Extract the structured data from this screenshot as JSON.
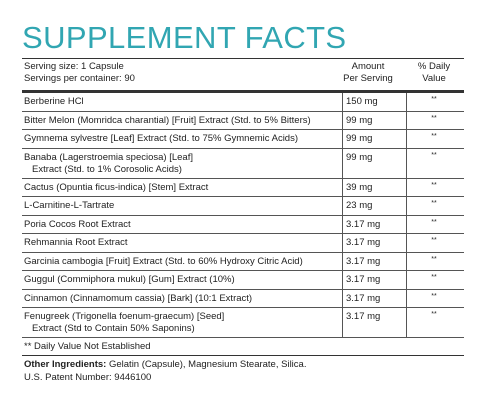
{
  "title": "SUPPLEMENT FACTS",
  "serving_size": "Serving size: 1 Capsule",
  "servings_per_container": "Servings per container: 90",
  "amount_header": [
    "Amount",
    "Per Serving"
  ],
  "daily_value_header": [
    "% Daily",
    "Value"
  ],
  "ingredients": [
    {
      "name": [
        "Berberine HCl"
      ],
      "amount": "150 mg",
      "dv": "**"
    },
    {
      "name": [
        "Bitter Melon (Momridca charantial) [Fruit] Extract (Std. to 5% Bitters)"
      ],
      "amount": "99 mg",
      "dv": "**"
    },
    {
      "name": [
        "Gymnema sylvestre [Leaf] Extract (Std. to 75% Gymnemic Acids)"
      ],
      "amount": "99 mg",
      "dv": "**"
    },
    {
      "name": [
        "Banaba (Lagerstroemia speciosa) [Leaf]",
        "Extract (Std. to 1% Corosolic Acids)"
      ],
      "amount": "99 mg",
      "dv": "**"
    },
    {
      "name": [
        "Cactus (Opuntia ficus-indica) [Stem] Extract"
      ],
      "amount": "39 mg",
      "dv": "**"
    },
    {
      "name": [
        "L-Carnitine-L-Tartrate"
      ],
      "amount": "23 mg",
      "dv": "**"
    },
    {
      "name": [
        "Poria Cocos Root Extract"
      ],
      "amount": "3.17 mg",
      "dv": "**"
    },
    {
      "name": [
        "Rehmannia Root Extract"
      ],
      "amount": "3.17 mg",
      "dv": "**"
    },
    {
      "name": [
        "Garcinia cambogia [Fruit] Extract (Std. to 60% Hydroxy Citric Acid)"
      ],
      "amount": "3.17 mg",
      "dv": "**"
    },
    {
      "name": [
        "Guggul (Commiphora mukul) [Gum] Extract (10%)"
      ],
      "amount": "3.17 mg",
      "dv": "**"
    },
    {
      "name": [
        "Cinnamon (Cinnamomum cassia) [Bark] (10:1 Extract)"
      ],
      "amount": "3.17 mg",
      "dv": "**"
    },
    {
      "name": [
        "Fenugreek (Trigonella foenum-graecum) [Seed]",
        "Extract (Std to Contain 50% Saponins)"
      ],
      "amount": "3.17 mg",
      "dv": "**"
    }
  ],
  "footnote": "** Daily Value Not Established",
  "other_ingredients_label": "Other Ingredients:",
  "other_ingredients": " Gelatin (Capsule), Magnesium Stearate, Silica.",
  "patent": "U.S. Patent Number: 9446100",
  "colors": {
    "title": "#31a6b2",
    "text": "#222222",
    "rule": "#333333"
  }
}
